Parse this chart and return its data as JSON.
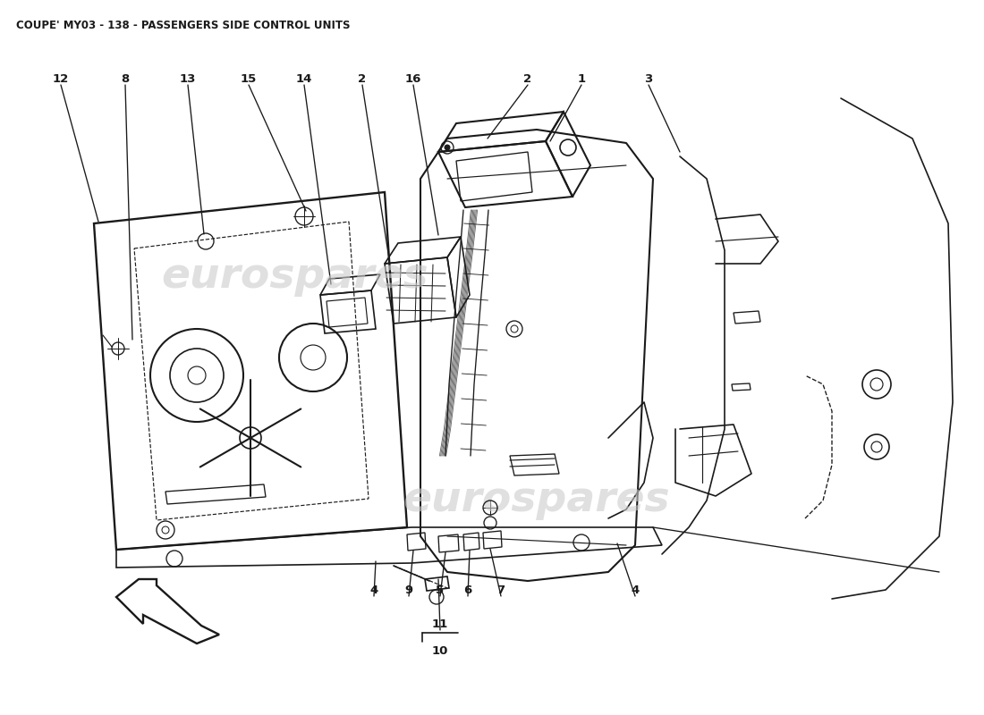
{
  "title": "COUPE' MY03 - 138 - PASSENGERS SIDE CONTROL UNITS",
  "title_fontsize": 8.5,
  "background_color": "#ffffff",
  "line_color": "#1a1a1a",
  "watermark_color": "#cccccc",
  "label_fontsize": 9.5
}
